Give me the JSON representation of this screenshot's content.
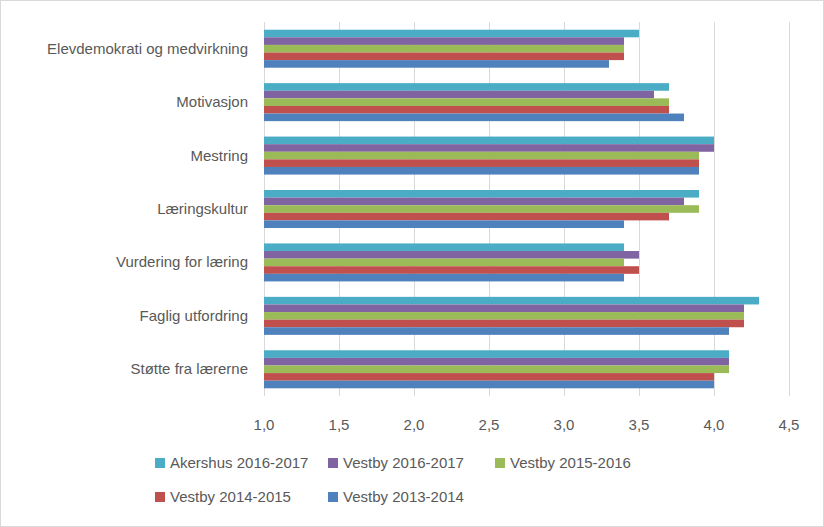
{
  "chart_data": {
    "type": "bar",
    "orientation": "horizontal",
    "categories": [
      "Elevdemokrati og medvirkning",
      "Motivasjon",
      "Mestring",
      "Læringskultur",
      "Vurdering for læring",
      "Faglig utfordring",
      "Støtte fra lærerne"
    ],
    "series": [
      {
        "name": "Akershus 2016-2017",
        "color": "#4bacc6",
        "values": [
          3.5,
          3.7,
          4.0,
          3.9,
          3.4,
          4.3,
          4.1
        ]
      },
      {
        "name": "Vestby 2016-2017",
        "color": "#8064a2",
        "values": [
          3.4,
          3.6,
          4.0,
          3.8,
          3.5,
          4.2,
          4.1
        ]
      },
      {
        "name": "Vestby 2015-2016",
        "color": "#9bbb59",
        "values": [
          3.4,
          3.7,
          3.9,
          3.9,
          3.4,
          4.2,
          4.1
        ]
      },
      {
        "name": "Vestby 2014-2015",
        "color": "#c0504d",
        "values": [
          3.4,
          3.7,
          3.9,
          3.7,
          3.5,
          4.2,
          4.0
        ]
      },
      {
        "name": "Vestby 2013-2014",
        "color": "#4f81bd",
        "values": [
          3.3,
          3.8,
          3.9,
          3.4,
          3.4,
          4.1,
          4.0
        ]
      }
    ],
    "xlim": [
      1.0,
      4.5
    ],
    "xticks": [
      {
        "value": 1.0,
        "label": "1,0"
      },
      {
        "value": 1.5,
        "label": "1,5"
      },
      {
        "value": 2.0,
        "label": "2,0"
      },
      {
        "value": 2.5,
        "label": "2,5"
      },
      {
        "value": 3.0,
        "label": "3,0"
      },
      {
        "value": 3.5,
        "label": "3,5"
      },
      {
        "value": 4.0,
        "label": "4,0"
      },
      {
        "value": 4.5,
        "label": "4,5"
      }
    ],
    "grid": true,
    "legend": "bottom"
  }
}
